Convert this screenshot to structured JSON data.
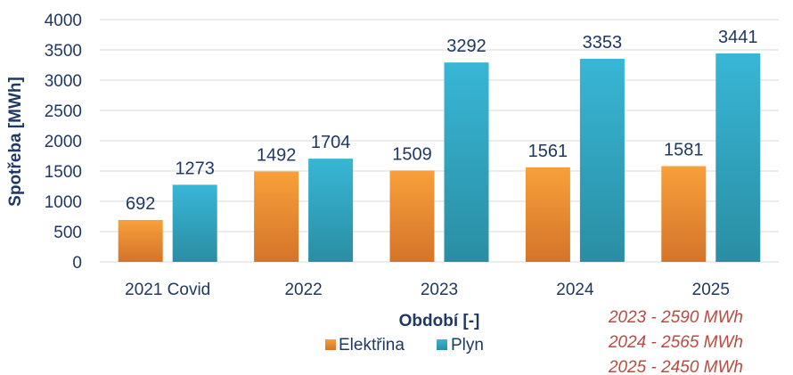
{
  "chart_data": {
    "type": "bar",
    "categories": [
      "2021 Covid",
      "2022",
      "2023",
      "2024",
      "2025"
    ],
    "series": [
      {
        "name": "Elektřina",
        "values": [
          692,
          1492,
          1509,
          1561,
          1581
        ],
        "color": "#f39233"
      },
      {
        "name": "Plyn",
        "values": [
          1273,
          1704,
          3292,
          3353,
          3441
        ],
        "color": "#33afcd"
      }
    ],
    "xlabel": "Období [-]",
    "ylabel": "Spotřeba [MWh]",
    "ylim": [
      0,
      4000
    ],
    "yticks": [
      0,
      500,
      1000,
      1500,
      2000,
      2500,
      3000,
      3500,
      4000
    ],
    "grid": true,
    "legend_position": "bottom",
    "annotations": [
      "2023 - 2590 MWh",
      "2024 - 2565 MWh",
      "2025 - 2450 MWh"
    ]
  }
}
